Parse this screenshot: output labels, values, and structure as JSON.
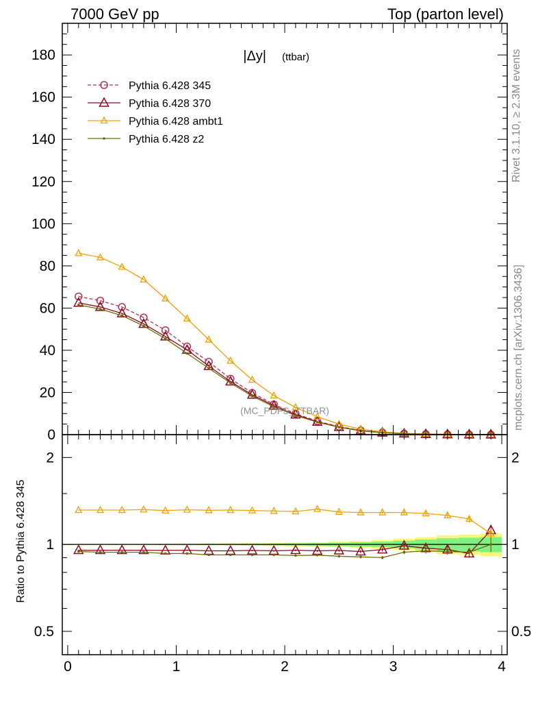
{
  "header": {
    "left": "7000 GeV pp",
    "right": "Top (parton level)"
  },
  "side_labels": {
    "rivet": "Rivet 3.1.10, ≥ 2.3M events",
    "mcplots": "mcplots.cern.ch [arXiv:1306.3436]"
  },
  "plot_title_main": "|Δy|",
  "plot_title_sub": "(ttbar)",
  "watermark": "(MC_PDFS_TTBAR)",
  "ratio_ylabel": "Ratio to Pythia 6.428 345",
  "colors": {
    "s345": "#b03050",
    "s370": "#8b0a20",
    "ambt1": "#f0a000",
    "z2": "#6b6b00",
    "band_green": "#80f080",
    "band_yellow": "#f8f878"
  },
  "chart_data": [
    {
      "type": "line",
      "title": "|Δy| (ttbar)",
      "xlim": [
        -0.05,
        4.05
      ],
      "ylim": [
        0,
        195
      ],
      "yticks": [
        0,
        20,
        40,
        60,
        80,
        100,
        120,
        140,
        160,
        180
      ],
      "ytick_labels": [
        "0",
        "20",
        "40",
        "60",
        "80",
        "100",
        "120",
        "140",
        "160",
        "180"
      ],
      "legend_position": "top-left",
      "x": [
        0.1,
        0.3,
        0.5,
        0.7,
        0.9,
        1.1,
        1.3,
        1.5,
        1.7,
        1.9,
        2.1,
        2.3,
        2.5,
        2.7,
        2.9,
        3.1,
        3.3,
        3.5,
        3.7,
        3.9
      ],
      "series": [
        {
          "name": "Pythia 6.428 345",
          "color_key": "s345",
          "marker": "circle",
          "dashed": true,
          "values": [
            65.5,
            63.5,
            60.5,
            55.5,
            49.5,
            41.8,
            34.5,
            26.5,
            19.8,
            14.3,
            9.9,
            6.4,
            3.8,
            2.0,
            1.0,
            0.5,
            0.25,
            0.12,
            0.06,
            0.03
          ]
        },
        {
          "name": "Pythia 6.428 370",
          "color_key": "s370",
          "marker": "triangle",
          "dashed": false,
          "values": [
            62.5,
            60.5,
            57.5,
            52.5,
            46.5,
            40.2,
            32.5,
            25.2,
            18.9,
            13.7,
            9.5,
            6.1,
            3.6,
            1.9,
            0.95,
            0.5,
            0.24,
            0.12,
            0.05,
            0.03
          ]
        },
        {
          "name": "Pythia 6.428 ambt1",
          "color_key": "ambt1",
          "marker": "triangle-small",
          "dashed": false,
          "values": [
            86.0,
            84.0,
            79.5,
            73.5,
            64.5,
            55.0,
            45.0,
            35.0,
            26.0,
            18.5,
            12.9,
            8.5,
            5.0,
            2.6,
            1.3,
            0.65,
            0.32,
            0.15,
            0.07,
            0.03
          ]
        },
        {
          "name": "Pythia 6.428 z2",
          "color_key": "z2",
          "marker": "dot",
          "dashed": false,
          "values": [
            61.5,
            59.5,
            56.5,
            51.5,
            45.5,
            38.5,
            31.5,
            24.5,
            18.3,
            13.2,
            9.1,
            5.9,
            3.5,
            1.8,
            0.9,
            0.45,
            0.23,
            0.11,
            0.05,
            0.03
          ]
        }
      ]
    },
    {
      "type": "line",
      "ylabel": "Ratio to Pythia 6.428 345",
      "xlim": [
        -0.05,
        4.05
      ],
      "ylim": [
        0.415,
        2.4
      ],
      "log_y": true,
      "yticks": [
        0.5,
        1,
        2
      ],
      "ytick_labels": [
        "0.5",
        "1",
        "2"
      ],
      "xticks": [
        0,
        1,
        2,
        3,
        4
      ],
      "xtick_labels": [
        "0",
        "1",
        "2",
        "3",
        "4"
      ],
      "x": [
        0.1,
        0.3,
        0.5,
        0.7,
        0.9,
        1.1,
        1.3,
        1.5,
        1.7,
        1.9,
        2.1,
        2.3,
        2.5,
        2.7,
        2.9,
        3.1,
        3.3,
        3.5,
        3.7,
        3.9
      ],
      "reference_band": {
        "x_edges": [
          0.0,
          0.2,
          0.4,
          0.6,
          0.8,
          1.0,
          1.2,
          1.4,
          1.6,
          1.8,
          2.0,
          2.2,
          2.4,
          2.6,
          2.8,
          3.0,
          3.2,
          3.4,
          3.6,
          3.8,
          4.0
        ],
        "inner": [
          0.003,
          0.003,
          0.003,
          0.003,
          0.004,
          0.004,
          0.005,
          0.005,
          0.006,
          0.007,
          0.009,
          0.011,
          0.013,
          0.017,
          0.022,
          0.03,
          0.04,
          0.05,
          0.055,
          0.06
        ],
        "outer": [
          0.005,
          0.005,
          0.005,
          0.005,
          0.006,
          0.007,
          0.008,
          0.009,
          0.01,
          0.012,
          0.015,
          0.018,
          0.022,
          0.028,
          0.035,
          0.045,
          0.06,
          0.075,
          0.08,
          0.09
        ]
      },
      "series": [
        {
          "name": "Pythia 6.428 370",
          "color_key": "s370",
          "marker": "triangle",
          "values": [
            0.955,
            0.955,
            0.955,
            0.955,
            0.953,
            0.955,
            0.95,
            0.95,
            0.953,
            0.95,
            0.955,
            0.95,
            0.953,
            0.945,
            0.96,
            0.99,
            0.97,
            0.96,
            0.93,
            1.12
          ],
          "err": [
            0.003,
            0.003,
            0.003,
            0.003,
            0.003,
            0.004,
            0.004,
            0.004,
            0.005,
            0.006,
            0.007,
            0.008,
            0.01,
            0.012,
            0.015,
            0.02,
            0.025,
            0.03,
            0.03,
            0.05
          ]
        },
        {
          "name": "Pythia 6.428 ambt1",
          "color_key": "ambt1",
          "marker": "triangle-small",
          "values": [
            1.315,
            1.315,
            1.315,
            1.32,
            1.31,
            1.318,
            1.313,
            1.315,
            1.31,
            1.305,
            1.3,
            1.325,
            1.295,
            1.29,
            1.29,
            1.29,
            1.28,
            1.26,
            1.225,
            1.09
          ],
          "err": [
            0.004,
            0.004,
            0.004,
            0.004,
            0.005,
            0.005,
            0.005,
            0.006,
            0.007,
            0.008,
            0.009,
            0.01,
            0.012,
            0.014,
            0.016,
            0.02,
            0.024,
            0.028,
            0.035,
            0.05
          ]
        },
        {
          "name": "Pythia 6.428 z2",
          "color_key": "z2",
          "marker": "dot",
          "values": [
            0.945,
            0.94,
            0.94,
            0.94,
            0.93,
            0.93,
            0.92,
            0.92,
            0.92,
            0.92,
            0.915,
            0.918,
            0.91,
            0.905,
            0.9,
            0.94,
            0.95,
            0.945,
            0.94,
            1.0
          ],
          "err": [
            0.003,
            0.003,
            0.003,
            0.003,
            0.003,
            0.004,
            0.004,
            0.004,
            0.005,
            0.006,
            0.007,
            0.008,
            0.009,
            0.01,
            0.012,
            0.015,
            0.02,
            0.025,
            0.03,
            0.06
          ]
        }
      ]
    }
  ]
}
